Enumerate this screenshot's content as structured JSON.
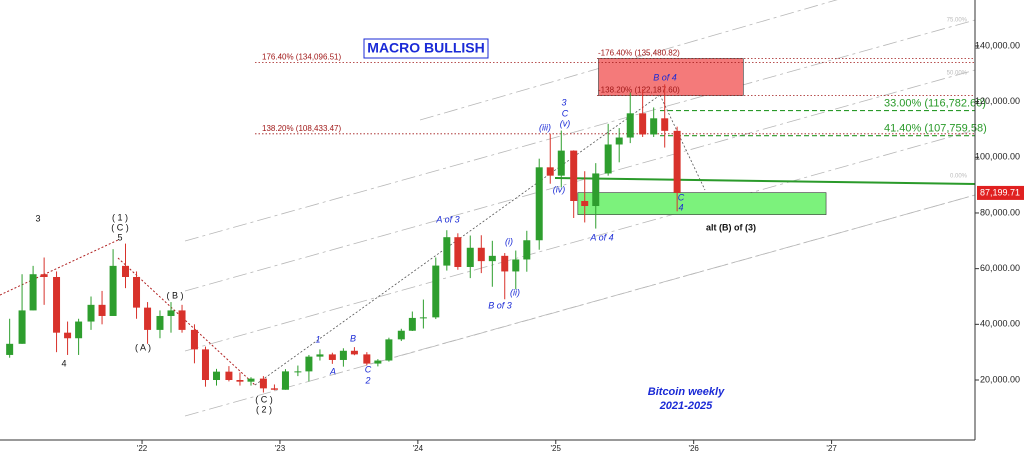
{
  "chart_data": {
    "type": "candlestick",
    "title": "MACRO BULLISH",
    "xlim": [
      2020.97,
      2028.04
    ],
    "xticks": [
      {
        "value": 2022,
        "label": "'22"
      },
      {
        "value": 2023,
        "label": "'23"
      },
      {
        "value": 2024,
        "label": "'24"
      },
      {
        "value": 2025,
        "label": "'25"
      },
      {
        "value": 2026,
        "label": "'26"
      },
      {
        "value": 2027,
        "label": "'27"
      }
    ],
    "ylim": [
      -1550,
      156500
    ],
    "yticks": [
      {
        "value": 20000,
        "label": "20,000.00"
      },
      {
        "value": 40000,
        "label": "40,000.00"
      },
      {
        "value": 60000,
        "label": "60,000.00"
      },
      {
        "value": 80000,
        "label": "80,000.00"
      },
      {
        "value": 100000,
        "label": "100,000.00"
      },
      {
        "value": 120000,
        "label": "120,000.00"
      },
      {
        "value": 140000,
        "label": "140,000.00"
      }
    ],
    "last_price": {
      "value": 87199.71,
      "label": "87,199.71"
    },
    "up_color": "#2e9e2e",
    "down_color": "#d8322b",
    "x": [
      2021.04,
      2021.13,
      2021.21,
      2021.29,
      2021.38,
      2021.46,
      2021.54,
      2021.63,
      2021.71,
      2021.79,
      2021.88,
      2021.96,
      2022.04,
      2022.13,
      2022.21,
      2022.29,
      2022.38,
      2022.46,
      2022.54,
      2022.63,
      2022.71,
      2022.79,
      2022.88,
      2022.96,
      2023.04,
      2023.13,
      2023.21,
      2023.29,
      2023.38,
      2023.46,
      2023.54,
      2023.63,
      2023.71,
      2023.79,
      2023.88,
      2023.96,
      2024.04,
      2024.13,
      2024.21,
      2024.29,
      2024.38,
      2024.46,
      2024.54,
      2024.63,
      2024.71,
      2024.79,
      2024.88,
      2024.96,
      2025.04,
      2025.13,
      2025.21,
      2025.29,
      2025.38,
      2025.46,
      2025.54,
      2025.63,
      2025.71,
      2025.79,
      2025.88
    ],
    "open": [
      29000,
      33000,
      45000,
      58000,
      57000,
      37000,
      35000,
      41000,
      47000,
      43000,
      61000,
      57000,
      46000,
      38000,
      43000,
      45000,
      38000,
      31000,
      20000,
      23000,
      20000,
      19400,
      20500,
      17000,
      16500,
      23100,
      23100,
      28400,
      29200,
      27200,
      30500,
      29200,
      25900,
      27000,
      34600,
      37700,
      42300,
      42500,
      61100,
      71300,
      60600,
      67500,
      62700,
      64600,
      59000,
      63300,
      70200,
      96400,
      93400,
      102400,
      84300,
      82500,
      94200,
      104600,
      107100,
      115800,
      108200,
      114000,
      109500
    ],
    "high": [
      42000,
      58000,
      61000,
      64000,
      59000,
      41000,
      42000,
      50000,
      52000,
      67000,
      69000,
      59000,
      48000,
      45000,
      48000,
      47000,
      40000,
      32000,
      24000,
      25000,
      22700,
      21000,
      21400,
      18400,
      23900,
      25200,
      29000,
      31000,
      29800,
      31400,
      31800,
      30000,
      27500,
      35200,
      38400,
      44600,
      48900,
      64000,
      73800,
      72700,
      71900,
      72000,
      70000,
      65600,
      66500,
      73600,
      99500,
      108400,
      109600,
      102500,
      95000,
      97900,
      112000,
      110500,
      123200,
      124500,
      117900,
      126200,
      111000
    ],
    "low": [
      28000,
      33000,
      45000,
      47000,
      30000,
      29000,
      29000,
      38000,
      40000,
      43000,
      53000,
      42000,
      33000,
      35000,
      37000,
      37000,
      26000,
      17600,
      18000,
      19500,
      18000,
      18000,
      15500,
      16300,
      16500,
      21400,
      19500,
      27000,
      25800,
      24800,
      28900,
      25300,
      24900,
      26600,
      34000,
      37600,
      38500,
      41900,
      59300,
      59600,
      56600,
      58400,
      53500,
      49000,
      52600,
      58900,
      66800,
      90500,
      89200,
      78200,
      76600,
      74400,
      93400,
      98200,
      105100,
      107300,
      107300,
      103500,
      80600
    ],
    "close": [
      33000,
      45000,
      58000,
      57000,
      37000,
      35000,
      41000,
      47000,
      43000,
      61000,
      57000,
      46000,
      38000,
      43000,
      45000,
      38000,
      31000,
      20000,
      23000,
      20000,
      19400,
      20500,
      17000,
      16500,
      23100,
      23100,
      28400,
      29200,
      27200,
      30500,
      29200,
      25900,
      27000,
      34600,
      37700,
      42300,
      42500,
      61100,
      71300,
      60600,
      67500,
      62700,
      64600,
      59000,
      63300,
      70200,
      96400,
      93400,
      102400,
      84300,
      82500,
      94200,
      104600,
      107100,
      115800,
      108200,
      114000,
      109500,
      87200
    ],
    "fib_levels": [
      {
        "label": "176.40% (134,096.51)",
        "value": 134096.51,
        "color": "#a01818"
      },
      {
        "label": "-176.40% (135,480.82)",
        "value": 135480.82,
        "color": "#a01818"
      },
      {
        "label": "-138.20% (122,187.60)",
        "value": 122187.6,
        "color": "#a01818"
      },
      {
        "label": "138.20% (108,433.47)",
        "value": 108433.47,
        "color": "#a01818"
      },
      {
        "label": "33.00% (116,782.60)",
        "value": 116782.6,
        "color": "#2a9a2a"
      },
      {
        "label": "41.40% (107,759.58)",
        "value": 107759.58,
        "color": "#2a9a2a"
      }
    ],
    "zones": [
      {
        "x": [
          2025.31,
          2026.36
        ],
        "y": [
          122187.6,
          135480.82
        ],
        "color": "#f47a7a"
      },
      {
        "x": [
          2025.16,
          2026.96
        ],
        "y": [
          79400,
          87300
        ],
        "color": "#7cf27c"
      }
    ],
    "wave_labels": [
      "3",
      "4",
      "( 1 )",
      "( C )",
      "5",
      "( B )",
      "( A )",
      "( C )",
      "( 2 )",
      "1",
      "A",
      "B",
      "C",
      "2",
      "A of 3",
      "(i)",
      "(ii)",
      "B of 3",
      "(iii)",
      "3",
      "C",
      "(v)",
      "(iv)",
      "A of 4",
      "B of 4",
      "C",
      "4"
    ],
    "alt_label": "alt (B) of (3)",
    "channel_labels": [
      "75.00%",
      "50.00%",
      "0.00%"
    ],
    "footnote": [
      "Bitcoin weekly",
      "2021-2025"
    ]
  }
}
